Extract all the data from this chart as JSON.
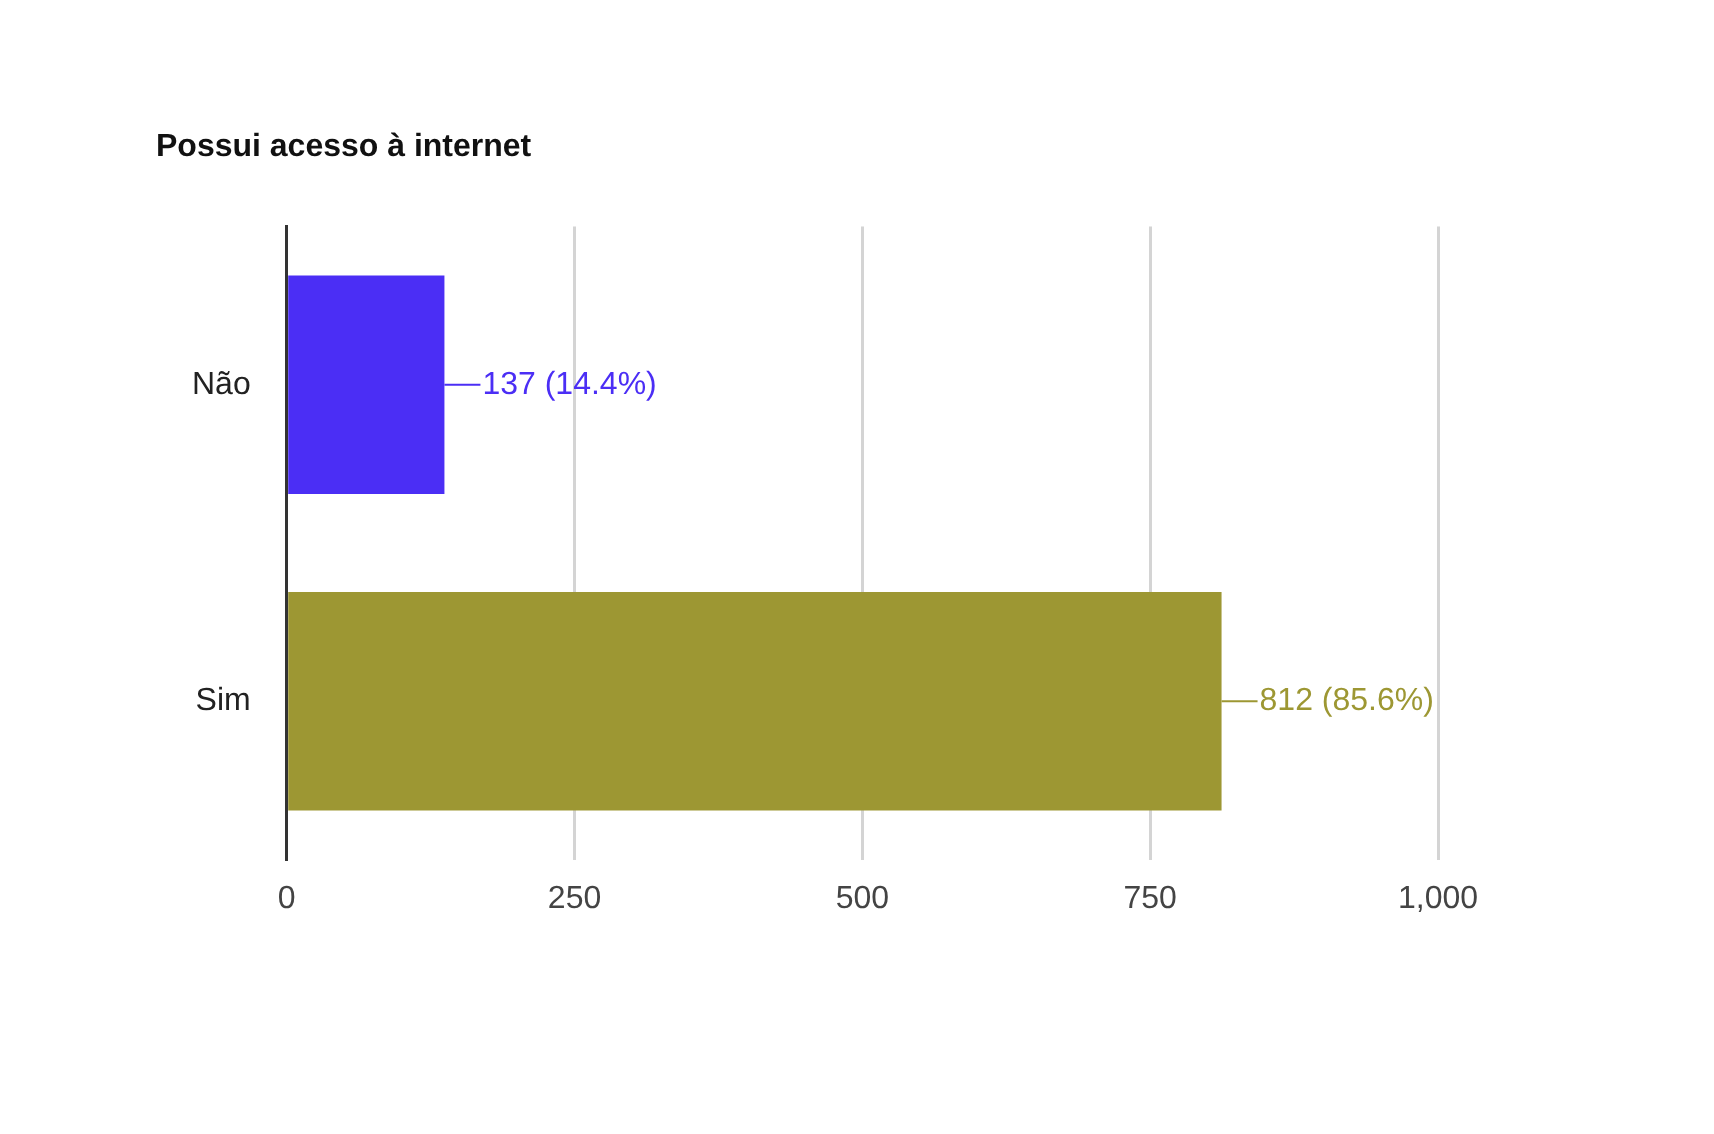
{
  "chart_data": {
    "type": "bar",
    "orientation": "horizontal",
    "title": "Possui acesso à internet",
    "categories": [
      "Não",
      "Sim"
    ],
    "values": [
      137,
      812
    ],
    "colors": [
      "#4b2ef5",
      "#9d9733"
    ],
    "value_labels": [
      "137 (14.4%)",
      "812 (85.6%)"
    ],
    "xlim": [
      0,
      1000
    ],
    "xticks": [
      0,
      250,
      500,
      750,
      {
        "value": 1000,
        "label": "1,000"
      }
    ],
    "grid": "x",
    "legend": false
  }
}
